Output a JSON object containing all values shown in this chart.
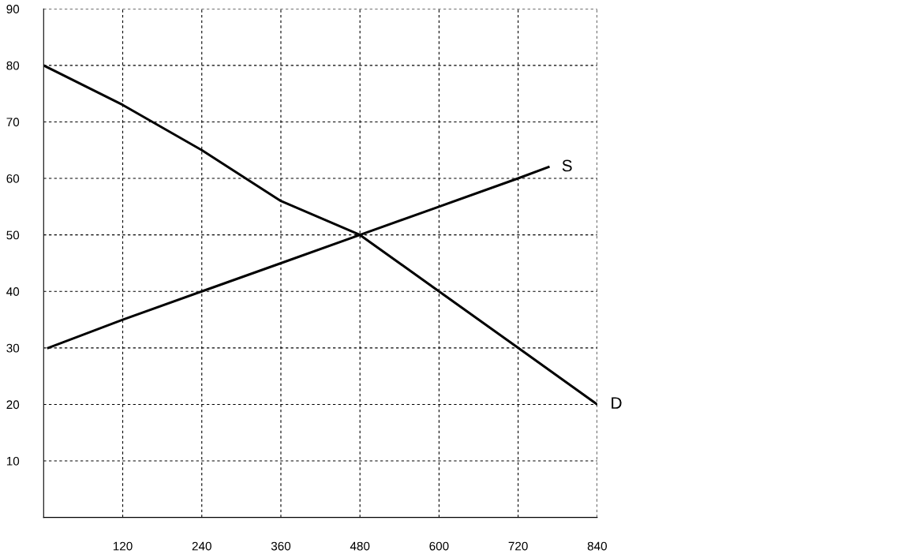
{
  "chart_data": {
    "type": "line",
    "series": [
      {
        "name": "D",
        "color": "#000000",
        "x": [
          0,
          120,
          240,
          360,
          480,
          600,
          720,
          840
        ],
        "values": [
          80,
          73,
          65,
          56,
          50,
          40,
          30,
          20
        ]
      },
      {
        "name": "S",
        "color": "#000000",
        "x": [
          7,
          120,
          240,
          360,
          480,
          600,
          720,
          766
        ],
        "values": [
          30,
          35,
          40,
          45,
          50,
          55,
          60,
          62
        ]
      }
    ],
    "xlim": [
      0,
      840
    ],
    "ylim": [
      0,
      90
    ],
    "xticks": [
      120,
      240,
      360,
      480,
      600,
      720,
      840
    ],
    "yticks": [
      10,
      20,
      30,
      40,
      50,
      60,
      70,
      80,
      90
    ],
    "grid": true,
    "legend": false,
    "marker": "none",
    "line_style": "solid"
  }
}
